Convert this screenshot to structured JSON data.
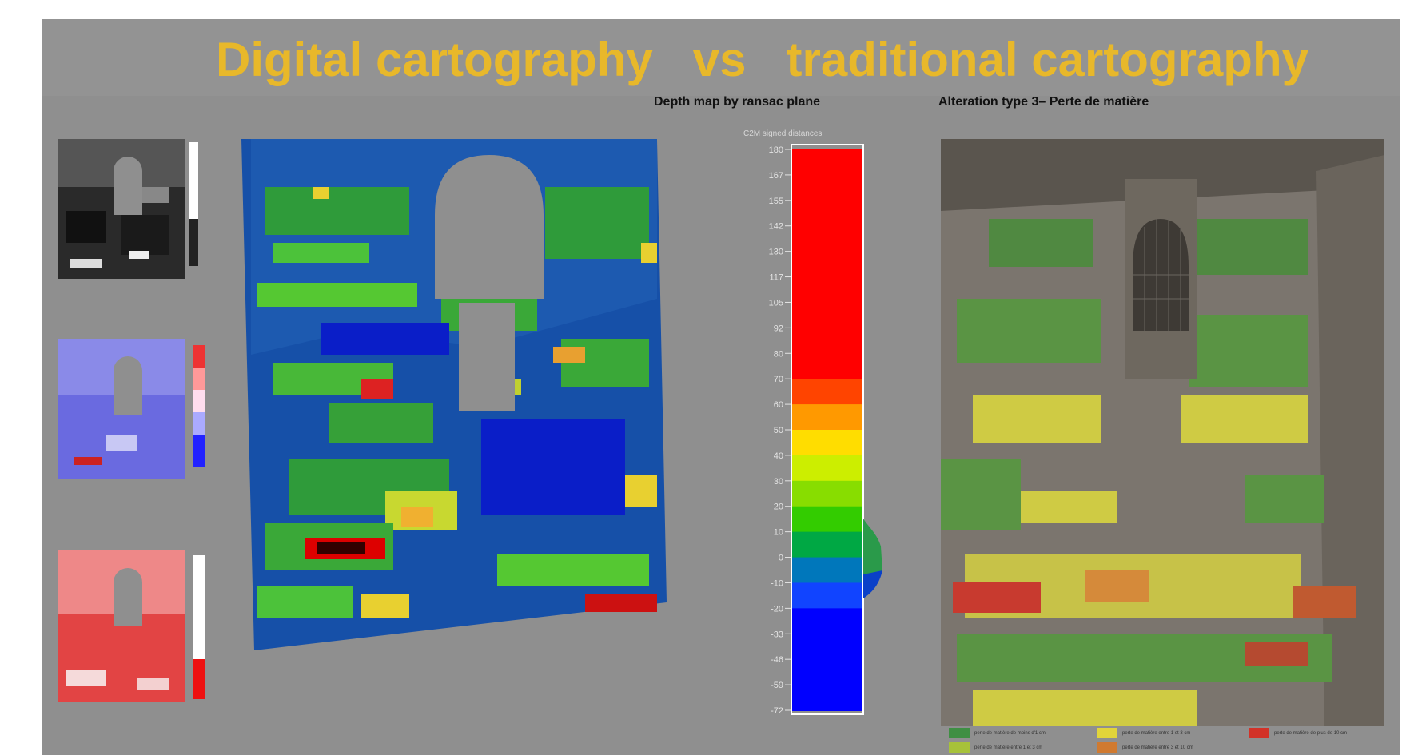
{
  "slide": {
    "title": "Digital cartography   vs   traditional cartography",
    "depth_title": "Depth map by ransac plane",
    "alteration_title": "Alteration type 3– Perte de matière",
    "colorbar_title": "C2M signed distances"
  },
  "colorbar": {
    "ticks": [
      "180",
      "167",
      "155",
      "142",
      "130",
      "117",
      "105",
      "92",
      "80",
      "70",
      "60",
      "50",
      "40",
      "30",
      "20",
      "10",
      "0",
      "-10",
      "-20",
      "-33",
      "-46",
      "-59",
      "-72"
    ],
    "bands": [
      "#ff0000",
      "#ff0000",
      "#ff0000",
      "#ff0000",
      "#ff0000",
      "#ff0000",
      "#ff0000",
      "#ff0000",
      "#ff0000",
      "#ff4400",
      "#ff9900",
      "#ffdd00",
      "#ccee00",
      "#88dd00",
      "#33cc00",
      "#00a844",
      "#0077bb",
      "#1144ff",
      "#0000ff",
      "#0000ff",
      "#0000ff",
      "#0000ff"
    ]
  },
  "legend": {
    "items": [
      {
        "label": "perte de matière de moins d'1 cm",
        "color": "#3f8f43"
      },
      {
        "label": "perte de matière entre 1 et 3 cm",
        "color": "#e2d53a"
      },
      {
        "label": "perte de matière de plus de 10 cm",
        "color": "#d23228"
      },
      {
        "label": "perte de matière entre 1 et 3 cm",
        "color": "#a7c23a"
      },
      {
        "label": "perte de matière entre 3 et 10 cm",
        "color": "#d07a30"
      }
    ]
  },
  "colors": {
    "title": "#e8b82a",
    "background": "#8f8f8f"
  }
}
